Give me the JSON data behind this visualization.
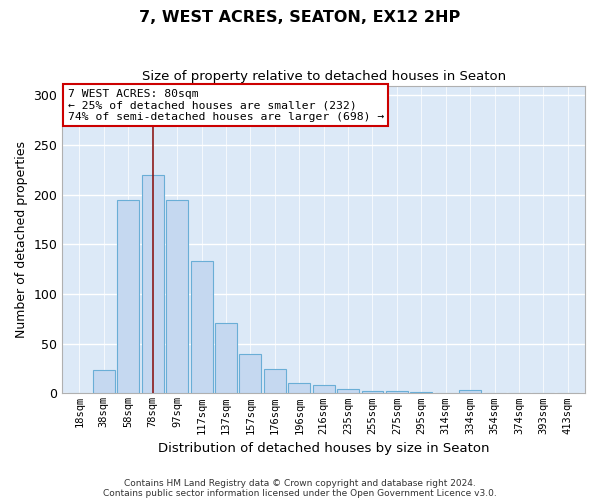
{
  "title": "7, WEST ACRES, SEATON, EX12 2HP",
  "subtitle": "Size of property relative to detached houses in Seaton",
  "xlabel": "Distribution of detached houses by size in Seaton",
  "ylabel": "Number of detached properties",
  "bar_labels": [
    "18sqm",
    "38sqm",
    "58sqm",
    "78sqm",
    "97sqm",
    "117sqm",
    "137sqm",
    "157sqm",
    "176sqm",
    "196sqm",
    "216sqm",
    "235sqm",
    "255sqm",
    "275sqm",
    "295sqm",
    "314sqm",
    "334sqm",
    "354sqm",
    "374sqm",
    "393sqm",
    "413sqm"
  ],
  "bar_values": [
    0,
    24,
    195,
    220,
    195,
    133,
    71,
    40,
    25,
    10,
    8,
    4,
    2,
    2,
    1,
    0,
    3,
    0,
    0,
    0,
    0
  ],
  "bar_color": "#c5d8f0",
  "bar_edge_color": "#6aaed6",
  "ylim": [
    0,
    310
  ],
  "yticks": [
    0,
    50,
    100,
    150,
    200,
    250,
    300
  ],
  "property_bin_index": 3,
  "vline_color": "#8b1a1a",
  "annotation_title": "7 WEST ACRES: 80sqm",
  "annotation_line1": "← 25% of detached houses are smaller (232)",
  "annotation_line2": "74% of semi-detached houses are larger (698) →",
  "annotation_box_facecolor": "#ffffff",
  "annotation_box_edgecolor": "#cc0000",
  "footnote1": "Contains HM Land Registry data © Crown copyright and database right 2024.",
  "footnote2": "Contains public sector information licensed under the Open Government Licence v3.0.",
  "fig_facecolor": "#ffffff",
  "plot_facecolor": "#dce9f7",
  "grid_color": "#ffffff",
  "spine_color": "#b0b0b0"
}
